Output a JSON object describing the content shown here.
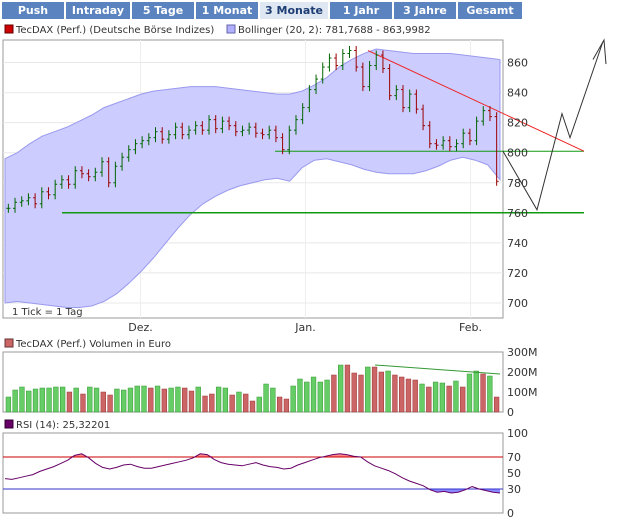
{
  "tabs": [
    {
      "label": "Push",
      "active": false
    },
    {
      "label": "Intraday",
      "active": false
    },
    {
      "label": "5 Tage",
      "active": false
    },
    {
      "label": "1 Monat",
      "active": false
    },
    {
      "label": "3 Monate",
      "active": true
    },
    {
      "label": "1 Jahr",
      "active": false
    },
    {
      "label": "3 Jahre",
      "active": false
    },
    {
      "label": "Gesamt",
      "active": false
    }
  ],
  "colors": {
    "price_series": "#cc0000",
    "bollinger": "#b0b0ff",
    "volume_legend": "#cc6666",
    "rsi_legend": "#660066",
    "bar_up": "#66cc66",
    "bar_down": "#cc6666",
    "trend_red": "#ee2222",
    "support_green": "#119911"
  },
  "legend": {
    "price": "TecDAX (Perf.) (Deutsche Börse Indizes)",
    "bollinger": "Bollinger (20, 2): 781,7688 - 863,9982",
    "volume": "TecDAX (Perf.) Volumen in Euro",
    "rsi": "RSI (14): 25,32201"
  },
  "tick_note": "1 Tick = 1 Tag",
  "chart_data": [
    {
      "type": "ohlc",
      "ylim": [
        690,
        875
      ],
      "yticks": [
        "700",
        "720",
        "740",
        "760",
        "780",
        "800",
        "820",
        "840",
        "860"
      ],
      "x_labels": [
        "Dez.",
        "Jan.",
        "Feb."
      ],
      "close": [
        763,
        767,
        768,
        770,
        766,
        774,
        772,
        779,
        782,
        779,
        788,
        786,
        784,
        787,
        794,
        780,
        791,
        797,
        802,
        806,
        808,
        810,
        814,
        809,
        812,
        817,
        812,
        815,
        818,
        815,
        822,
        816,
        821,
        818,
        814,
        815,
        817,
        813,
        812,
        815,
        810,
        802,
        815,
        822,
        830,
        842,
        849,
        857,
        863,
        858,
        866,
        868,
        857,
        844,
        858,
        865,
        856,
        838,
        842,
        830,
        839,
        829,
        818,
        806,
        805,
        808,
        804,
        806,
        813,
        808,
        821,
        828,
        824,
        781
      ],
      "bollinger_upper": [
        796,
        800,
        806,
        811,
        814,
        817,
        821,
        825,
        830,
        833,
        836,
        839,
        841,
        842,
        843,
        844,
        844,
        844,
        843,
        842,
        841,
        840,
        839,
        839,
        841,
        845,
        850,
        857,
        862,
        866,
        869,
        868,
        867,
        866,
        866,
        866,
        866,
        865,
        864,
        863,
        862
      ],
      "bollinger_lower": [
        700,
        701,
        700,
        699,
        698,
        697,
        697,
        698,
        701,
        706,
        713,
        721,
        730,
        740,
        750,
        759,
        766,
        771,
        775,
        778,
        780,
        782,
        783,
        781,
        790,
        795,
        796,
        794,
        792,
        789,
        787,
        786,
        786,
        786,
        788,
        791,
        795,
        797,
        795,
        792,
        782
      ],
      "support_level": 760,
      "middle_level": 801
    },
    {
      "type": "bar",
      "title": "TecDAX (Perf.) Volumen in Euro",
      "ylim": [
        0,
        300
      ],
      "yticks": [
        "0",
        "100M",
        "200M",
        "300M"
      ],
      "values": [
        75,
        110,
        125,
        105,
        115,
        120,
        120,
        125,
        125,
        100,
        120,
        90,
        125,
        120,
        100,
        85,
        115,
        110,
        120,
        130,
        130,
        120,
        130,
        115,
        120,
        125,
        120,
        105,
        125,
        80,
        90,
        125,
        120,
        85,
        100,
        90,
        55,
        75,
        140,
        120,
        75,
        65,
        130,
        165,
        150,
        175,
        150,
        160,
        185,
        235,
        235,
        195,
        185,
        225,
        225,
        200,
        205,
        185,
        175,
        165,
        160,
        140,
        125,
        150,
        145,
        130,
        155,
        125,
        190,
        205,
        190,
        180,
        75
      ],
      "up": [
        1,
        1,
        1,
        1,
        1,
        1,
        1,
        1,
        1,
        0,
        1,
        0,
        1,
        1,
        0,
        0,
        1,
        1,
        1,
        1,
        1,
        0,
        1,
        0,
        1,
        1,
        0,
        0,
        1,
        0,
        0,
        1,
        1,
        0,
        1,
        0,
        0,
        1,
        1,
        1,
        0,
        0,
        1,
        1,
        1,
        1,
        1,
        1,
        0,
        1,
        0,
        0,
        0,
        1,
        0,
        0,
        1,
        0,
        0,
        0,
        0,
        1,
        0,
        1,
        1,
        0,
        1,
        0,
        1,
        1,
        0,
        1,
        0
      ]
    },
    {
      "type": "line",
      "title": "RSI (14): 25,32201",
      "ylim": [
        0,
        100
      ],
      "yticks": [
        "0",
        "30",
        "50",
        "70",
        "100"
      ],
      "levels": [
        70,
        30
      ],
      "values": [
        43,
        42,
        44,
        46,
        48,
        52,
        55,
        58,
        62,
        66,
        72,
        74,
        69,
        62,
        57,
        55,
        57,
        60,
        61,
        58,
        56,
        56,
        58,
        60,
        62,
        64,
        66,
        69,
        74,
        73,
        67,
        63,
        61,
        60,
        59,
        61,
        63,
        60,
        58,
        57,
        55,
        56,
        60,
        63,
        66,
        69,
        71,
        73,
        74,
        73,
        71,
        70,
        64,
        59,
        56,
        53,
        49,
        44,
        40,
        37,
        34,
        29,
        26,
        27,
        25,
        26,
        29,
        33,
        30,
        28,
        26,
        25
      ]
    }
  ]
}
